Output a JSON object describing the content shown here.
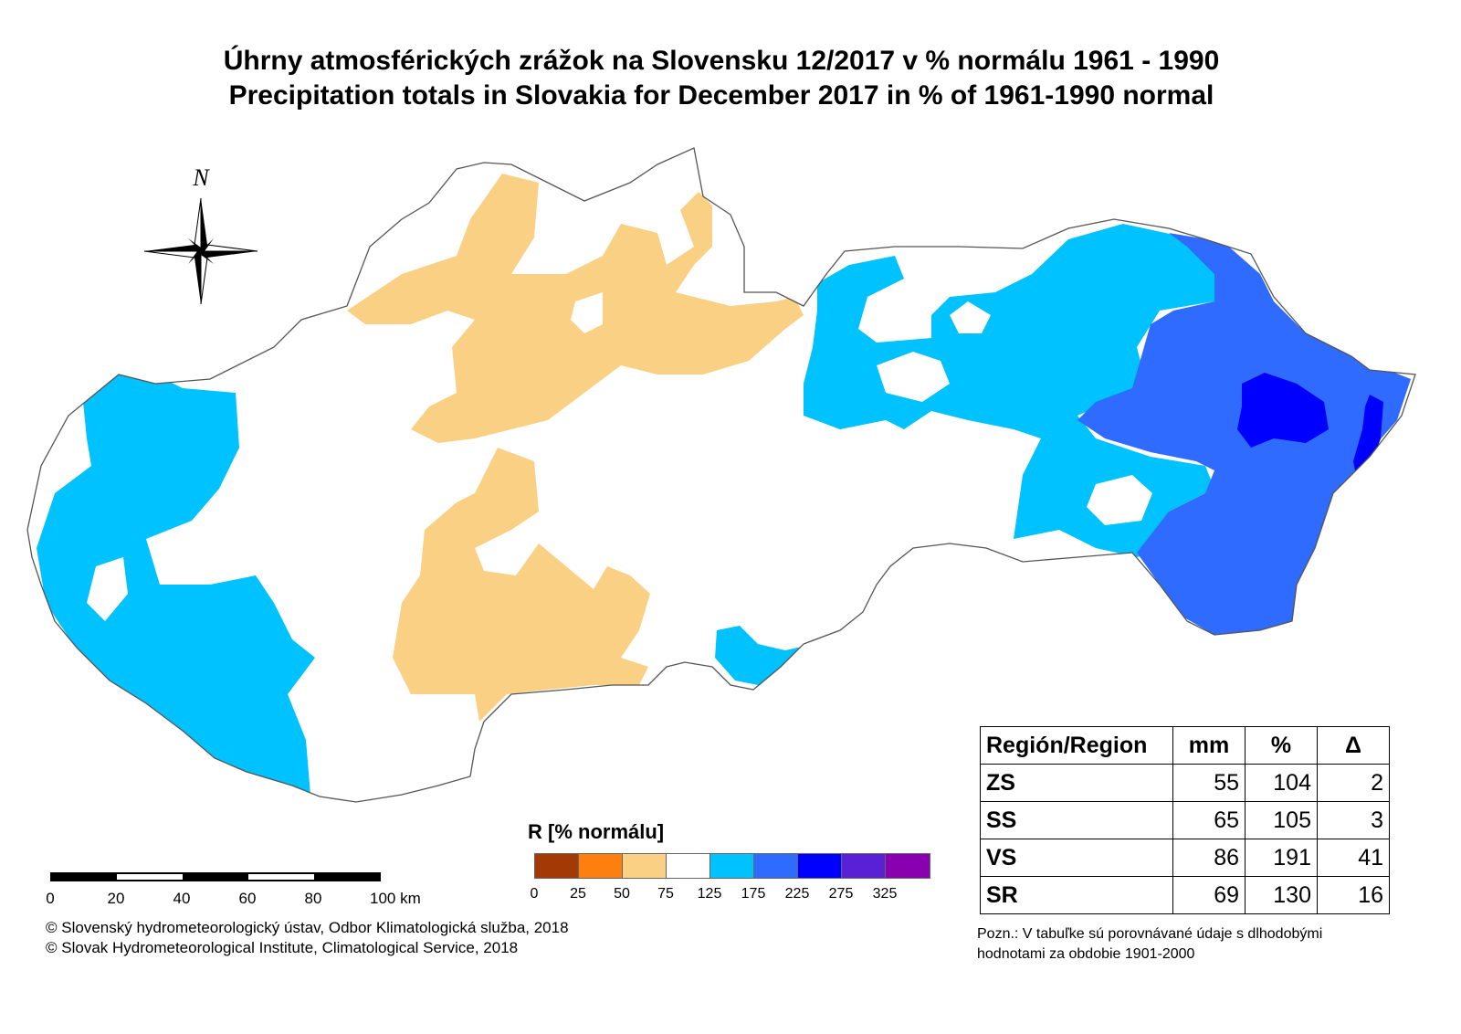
{
  "title_sk": "Úhrny atmosférických zrážok na Slovensku 12/2017 v % normálu 1961 - 1990",
  "title_en": "Precipitation totals in Slovakia for December 2017 in % of 1961-1990 normal",
  "north_label": "N",
  "legend": {
    "title": "R [% normálu]",
    "colors": [
      "#a33a05",
      "#ff7f0e",
      "#fad085",
      "#ffffff",
      "#00c2ff",
      "#2f6bff",
      "#0000ff",
      "#5a20d6",
      "#8800b0"
    ],
    "ticks": [
      "0",
      "25",
      "50",
      "75",
      "125",
      "175",
      "225",
      "275",
      "325"
    ]
  },
  "scale": {
    "ticks": [
      "0",
      "20",
      "40",
      "60",
      "80",
      "100 km"
    ]
  },
  "copyright": [
    "© Slovenský hydrometeorologický ústav, Odbor Klimatologická služba, 2018",
    "© Slovak Hydrometeorological Institute, Climatological Service, 2018"
  ],
  "table": {
    "headers": [
      "Región/Region",
      "mm",
      "%",
      "Δ"
    ],
    "rows": [
      [
        "ZS",
        "55",
        "104",
        "2"
      ],
      [
        "SS",
        "65",
        "105",
        "3"
      ],
      [
        "VS",
        "86",
        "191",
        "41"
      ],
      [
        "SR",
        "69",
        "130",
        "16"
      ]
    ]
  },
  "note": [
    "Pozn.: V tabuľke sú porovnávané údaje s dlhodobými",
    "hodnotami za obdobie 1901-2000"
  ]
}
